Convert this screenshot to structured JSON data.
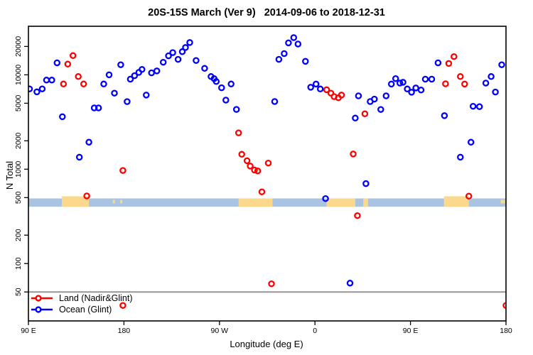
{
  "title": "20S-15S March (Ver 9)   2014-09-06 to 2018-12-31",
  "axes": {
    "x_label": "Longitude (deg E)",
    "y_label": "N Total",
    "y_scale": "log",
    "x_ticks": [
      {
        "lon": 90,
        "label": "90 E"
      },
      {
        "lon": 180,
        "label": "180"
      },
      {
        "lon": 270,
        "label": "90 W"
      },
      {
        "lon": 360,
        "label": "0"
      },
      {
        "lon": 450,
        "label": "90 E"
      },
      {
        "lon": 540,
        "label": "180"
      }
    ],
    "y_ticks": [
      50,
      100,
      200,
      500,
      1000,
      2000,
      5000,
      10000,
      20000
    ],
    "x_range": [
      90,
      540
    ],
    "y_range": [
      25,
      33000
    ]
  },
  "legend": {
    "items": [
      {
        "label": "Land (Nadir&Glint)",
        "color": "#ff0000"
      },
      {
        "label": "Ocean (Glint)",
        "color": "#0000ff"
      }
    ]
  },
  "reference_line": {
    "value": 50,
    "color": "#969696"
  },
  "geo_band": {
    "ocean_color": "#a9c3e0",
    "land_color": "#fbd98c",
    "top_value": 490,
    "bottom_value": 400,
    "land_segments": [
      {
        "from": 121.5,
        "to": 147,
        "raised": true
      },
      {
        "from": 169.5,
        "to": 171.5,
        "speck": true
      },
      {
        "from": 176.5,
        "to": 178.5,
        "speck": true
      },
      {
        "from": 288,
        "to": 320,
        "raised": false
      },
      {
        "from": 371,
        "to": 398,
        "raised": false
      },
      {
        "from": 405.5,
        "to": 410,
        "raised": false
      },
      {
        "from": 481.5,
        "to": 505,
        "raised": true
      },
      {
        "from": 535,
        "to": 539,
        "speck": true
      }
    ]
  },
  "chart_data": {
    "type": "scatter",
    "x_axis_note": "Longitude (deg E), axis runs 90E eastward through 180, 90W, 0, 90E to 180",
    "series": [
      {
        "name": "Land (Nadir&Glint)",
        "color": "#ff0000",
        "points": [
          [
            123,
            8000
          ],
          [
            127,
            13000
          ],
          [
            132,
            16000
          ],
          [
            137,
            9600
          ],
          [
            142,
            8000
          ],
          [
            145,
            520
          ],
          [
            179,
            970
          ],
          [
            179,
            36
          ],
          [
            288,
            2430
          ],
          [
            291,
            1440
          ],
          [
            296,
            1230
          ],
          [
            299,
            1080
          ],
          [
            303,
            980
          ],
          [
            306,
            960
          ],
          [
            310,
            575
          ],
          [
            316,
            1160
          ],
          [
            319,
            61
          ],
          [
            371,
            6950
          ],
          [
            375,
            6390
          ],
          [
            378,
            5880
          ],
          [
            382,
            5710
          ],
          [
            385,
            6100
          ],
          [
            396,
            1450
          ],
          [
            400,
            322
          ],
          [
            407,
            3860
          ],
          [
            483,
            8040
          ],
          [
            486,
            13200
          ],
          [
            491,
            15600
          ],
          [
            497,
            9600
          ],
          [
            501,
            7980
          ],
          [
            505,
            518
          ],
          [
            540,
            36
          ]
        ]
      },
      {
        "name": "Ocean (Glint)",
        "color": "#0000ff",
        "points": [
          [
            91,
            7100
          ],
          [
            98,
            6600
          ],
          [
            103,
            7100
          ],
          [
            107,
            8800
          ],
          [
            112,
            8800
          ],
          [
            117,
            13400
          ],
          [
            122,
            3600
          ],
          [
            138,
            1340
          ],
          [
            147,
            1930
          ],
          [
            152,
            4460
          ],
          [
            156,
            4460
          ],
          [
            161,
            8000
          ],
          [
            166,
            10000
          ],
          [
            171,
            6400
          ],
          [
            177,
            12800
          ],
          [
            183,
            5200
          ],
          [
            186,
            9000
          ],
          [
            190,
            9800
          ],
          [
            194,
            10600
          ],
          [
            197,
            11400
          ],
          [
            201,
            6100
          ],
          [
            206,
            10500
          ],
          [
            211,
            11000
          ],
          [
            217,
            13600
          ],
          [
            222,
            15900
          ],
          [
            226,
            17200
          ],
          [
            231,
            14600
          ],
          [
            235,
            17600
          ],
          [
            238,
            19500
          ],
          [
            242,
            22000
          ],
          [
            248,
            14200
          ],
          [
            256,
            11700
          ],
          [
            262,
            9600
          ],
          [
            265,
            9100
          ],
          [
            267,
            8500
          ],
          [
            272,
            7300
          ],
          [
            276,
            5400
          ],
          [
            281,
            8000
          ],
          [
            286,
            4300
          ],
          [
            322,
            5210
          ],
          [
            326,
            14600
          ],
          [
            331,
            16800
          ],
          [
            335,
            21800
          ],
          [
            340,
            24800
          ],
          [
            344,
            21200
          ],
          [
            351,
            13900
          ],
          [
            356,
            7380
          ],
          [
            361,
            7980
          ],
          [
            365,
            7080
          ],
          [
            370,
            488
          ],
          [
            393,
            62
          ],
          [
            398,
            3480
          ],
          [
            401,
            5990
          ],
          [
            408,
            703
          ],
          [
            412,
            5210
          ],
          [
            416,
            5530
          ],
          [
            422,
            4290
          ],
          [
            427,
            5990
          ],
          [
            432,
            7980
          ],
          [
            436,
            9130
          ],
          [
            440,
            8180
          ],
          [
            443,
            8330
          ],
          [
            447,
            7080
          ],
          [
            451,
            6540
          ],
          [
            455,
            7260
          ],
          [
            460,
            6900
          ],
          [
            464,
            9000
          ],
          [
            470,
            9000
          ],
          [
            476,
            13400
          ],
          [
            482,
            3690
          ],
          [
            497,
            1340
          ],
          [
            507,
            1930
          ],
          [
            509,
            4640
          ],
          [
            515,
            4600
          ],
          [
            521,
            8180
          ],
          [
            526,
            9600
          ],
          [
            530,
            6570
          ],
          [
            536,
            12800
          ]
        ]
      }
    ]
  }
}
